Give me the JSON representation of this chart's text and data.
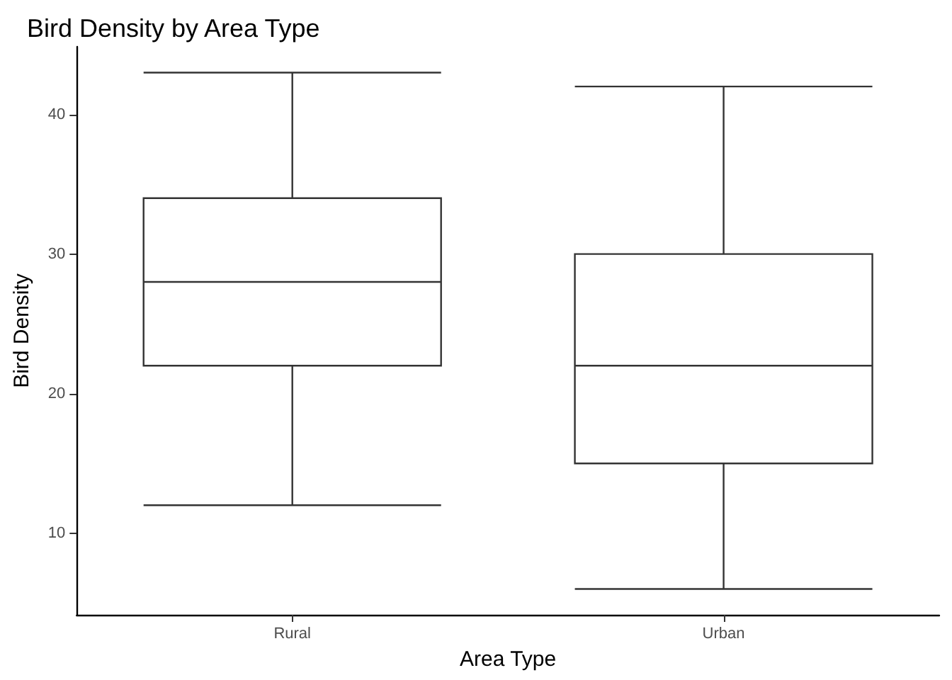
{
  "chart_data": {
    "type": "box",
    "title": "Bird Density by Area Type",
    "xlabel": "Area Type",
    "ylabel": "Bird Density",
    "categories": [
      "Rural",
      "Urban"
    ],
    "series": [
      {
        "color": "#333333",
        "boxes": [
          {
            "low": 12,
            "q1": 22,
            "median": 28,
            "q3": 34,
            "high": 43
          },
          {
            "low": 6,
            "q1": 15,
            "median": 22,
            "q3": 30,
            "high": 42
          }
        ]
      }
    ],
    "ylim": [
      4.15,
      44.85
    ],
    "yticks": [
      10,
      20,
      30,
      40
    ]
  }
}
